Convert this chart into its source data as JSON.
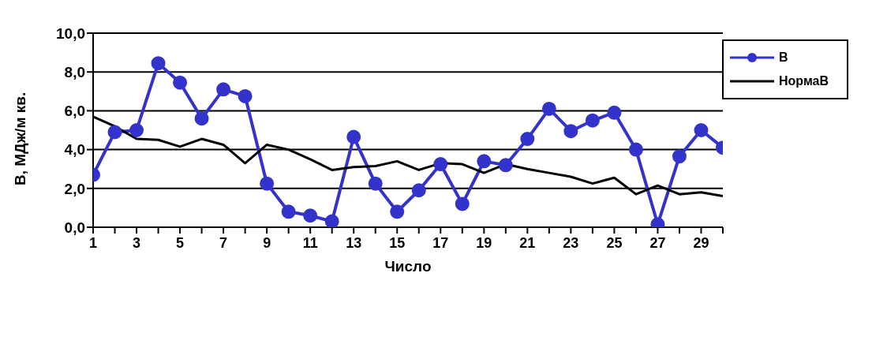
{
  "chart_data": {
    "type": "line",
    "xlabel": "Число",
    "ylabel": "В, МДж/м кв.",
    "x": [
      1,
      2,
      3,
      4,
      5,
      6,
      7,
      8,
      9,
      10,
      11,
      12,
      13,
      14,
      15,
      16,
      17,
      18,
      19,
      20,
      21,
      22,
      23,
      24,
      25,
      26,
      27,
      28,
      29,
      30
    ],
    "xlim": [
      1,
      30
    ],
    "xticks": [
      1,
      {
        "value": 2,
        "label": null
      },
      3,
      {
        "value": 4,
        "label": null
      },
      5,
      {
        "value": 6,
        "label": null
      },
      7,
      {
        "value": 8,
        "label": null
      },
      9,
      {
        "value": 10,
        "label": null
      },
      11,
      {
        "value": 12,
        "label": null
      },
      13,
      {
        "value": 14,
        "label": null
      },
      15,
      {
        "value": 16,
        "label": null
      },
      17,
      {
        "value": 18,
        "label": null
      },
      19,
      {
        "value": 20,
        "label": null
      },
      21,
      {
        "value": 22,
        "label": null
      },
      23,
      {
        "value": 24,
        "label": null
      },
      25,
      {
        "value": 26,
        "label": null
      },
      27,
      {
        "value": 28,
        "label": null
      },
      29,
      {
        "value": 30,
        "label": null
      }
    ],
    "series": [
      {
        "name": "В",
        "color": "#3333cc",
        "marker": "circle",
        "values": [
          2.7,
          4.9,
          5.0,
          8.45,
          7.45,
          5.6,
          7.1,
          6.75,
          2.25,
          0.8,
          0.6,
          0.3,
          4.65,
          2.25,
          0.8,
          1.9,
          3.25,
          1.2,
          3.4,
          3.2,
          4.55,
          6.1,
          4.95,
          5.5,
          5.9,
          4.0,
          0.15,
          3.65,
          5.0,
          4.1
        ]
      },
      {
        "name": "НормаВ",
        "color": "#000000",
        "marker": "none",
        "values": [
          5.7,
          5.2,
          4.55,
          4.5,
          4.15,
          4.55,
          4.25,
          3.3,
          4.25,
          4.0,
          3.5,
          2.95,
          3.1,
          3.15,
          3.4,
          2.95,
          3.3,
          3.25,
          2.8,
          3.25,
          3.0,
          2.8,
          2.6,
          2.25,
          2.55,
          1.7,
          2.15,
          1.7,
          1.8,
          1.6
        ]
      }
    ],
    "ylim": [
      0,
      10
    ],
    "yticks": [
      {
        "value": 0,
        "label": "0,0"
      },
      {
        "value": 2,
        "label": "2,0"
      },
      {
        "value": 4,
        "label": "4,0"
      },
      {
        "value": 6,
        "label": "6,0"
      },
      {
        "value": 8,
        "label": "8,0"
      },
      {
        "value": 10,
        "label": "10,0"
      }
    ],
    "grid": "y",
    "legend": "top right"
  }
}
